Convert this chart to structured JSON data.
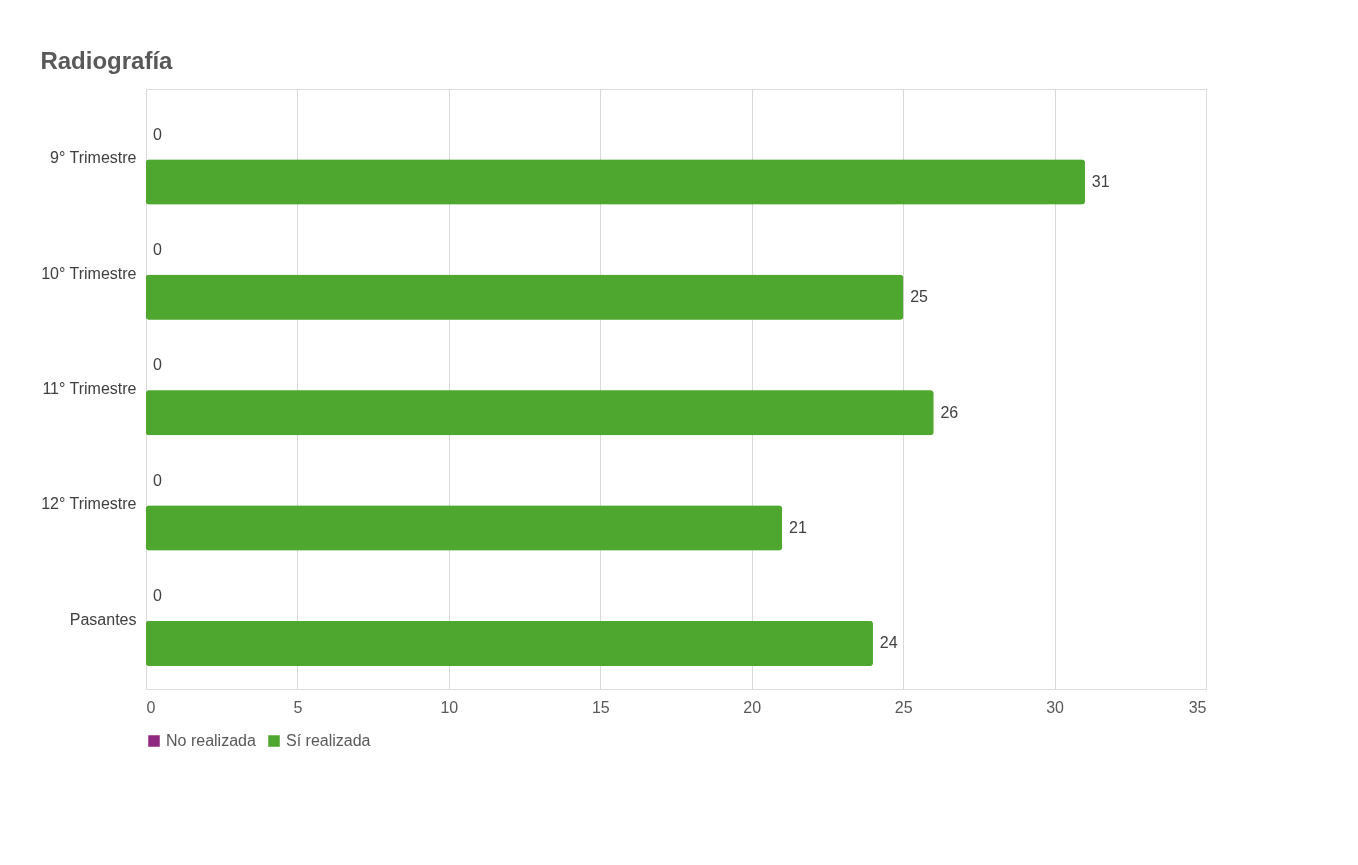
{
  "chart_data": {
    "type": "bar",
    "orientation": "horizontal",
    "title": "Radiografía",
    "categories": [
      "9° Trimestre",
      "10° Trimestre",
      "11° Trimestre",
      "12° Trimestre",
      "Pasantes"
    ],
    "series": [
      {
        "name": "No realizada",
        "color": "#8e2a80",
        "values": [
          0,
          0,
          0,
          0,
          0
        ]
      },
      {
        "name": "Sí realizada",
        "color": "#4ea72e",
        "values": [
          31,
          25,
          26,
          21,
          24
        ]
      }
    ],
    "xlim": [
      0,
      35
    ],
    "xticks": [
      0,
      5,
      10,
      15,
      20,
      25,
      30,
      35
    ],
    "grid": "x",
    "legend": "bottom",
    "data_labels": true
  }
}
